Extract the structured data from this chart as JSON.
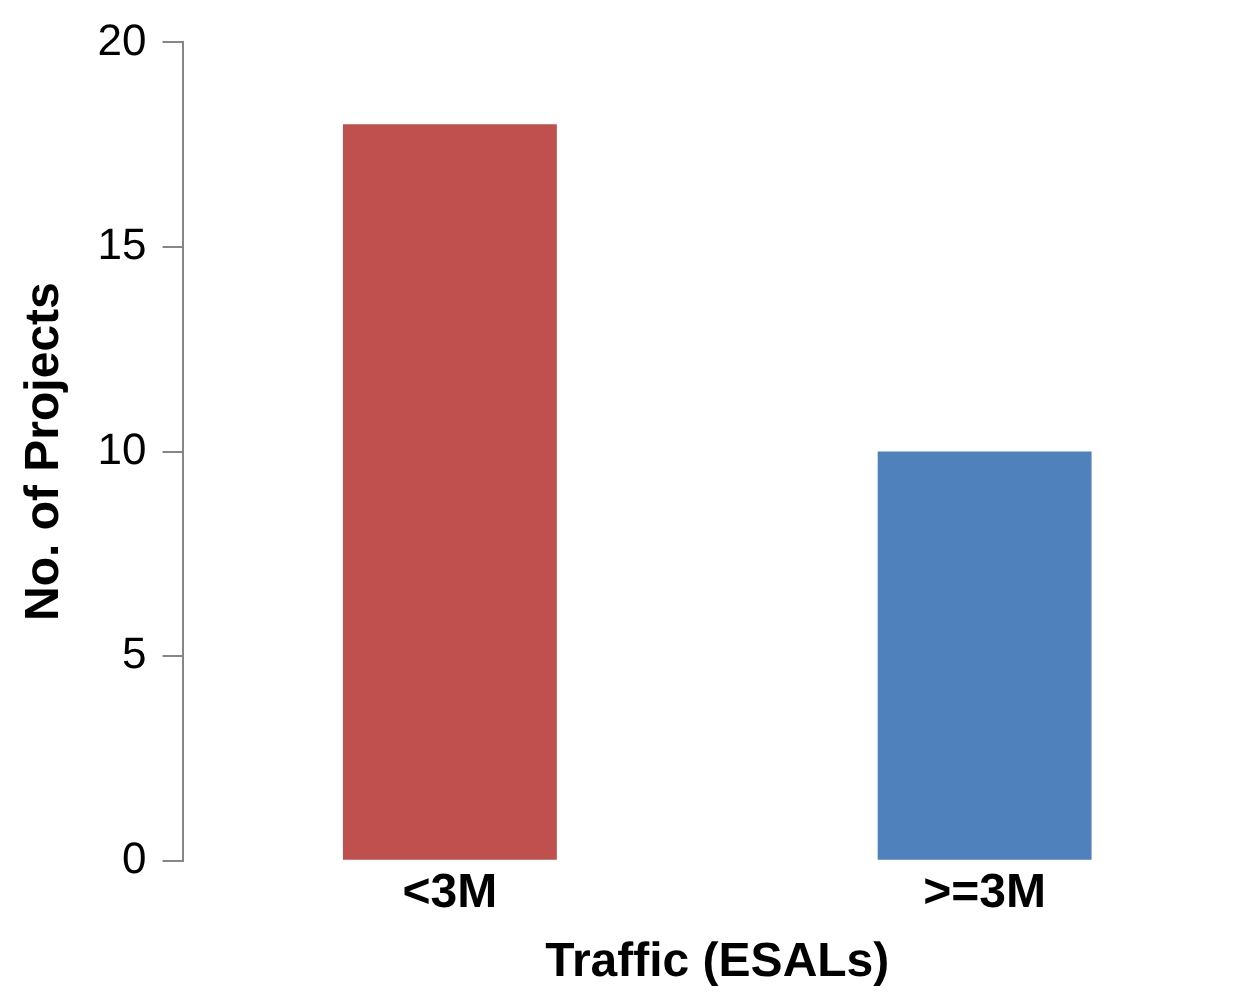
{
  "chart_data": {
    "type": "bar",
    "categories": [
      "<3M",
      ">=3M"
    ],
    "values": [
      18,
      10
    ],
    "colors": [
      "#c0504d",
      "#4f81bd"
    ],
    "xlabel": "Traffic (ESALs)",
    "ylabel": "No. of Projects",
    "ylim": [
      0,
      20
    ],
    "yticks": [
      0,
      5,
      10,
      15,
      20
    ],
    "grid": false,
    "legend": false
  }
}
